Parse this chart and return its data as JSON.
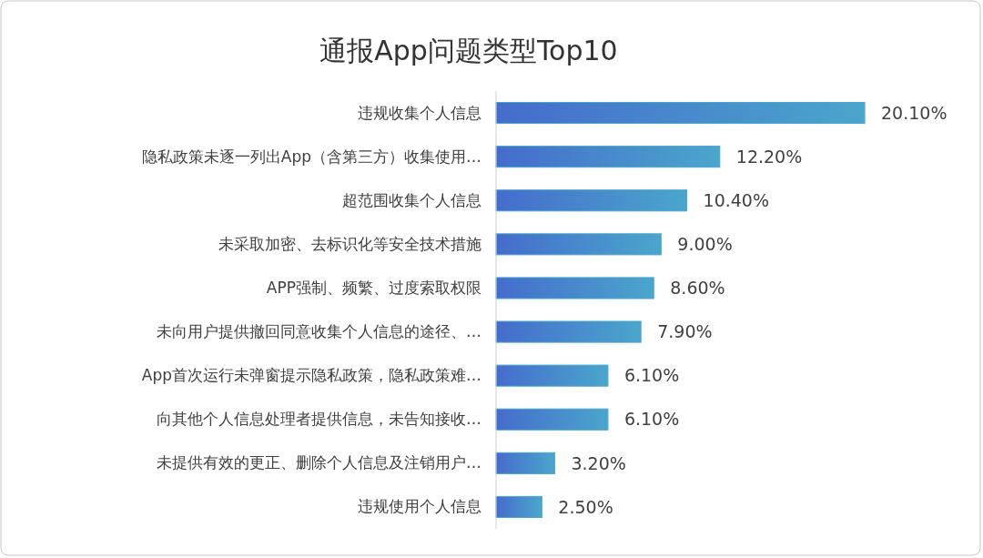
{
  "chart_data": {
    "type": "bar",
    "orientation": "horizontal",
    "title": "通报App问题类型Top10",
    "categories": [
      "违规收集个人信息",
      "隐私政策未逐一列出App（含第三方）收集使用…",
      "超范围收集个人信息",
      "未采取加密、去标识化等安全技术措施",
      "APP强制、频繁、过度索取权限",
      "未向用户提供撤回同意收集个人信息的途径、…",
      "App首次运行未弹窗提示隐私政策，隐私政策难…",
      "向其他个人信息处理者提供信息，未告知接收…",
      "未提供有效的更正、删除个人信息及注销用户…",
      "违规使用个人信息"
    ],
    "values": [
      20.1,
      12.2,
      10.4,
      9.0,
      8.6,
      7.9,
      6.1,
      6.1,
      3.2,
      2.5
    ],
    "value_labels": [
      "20.10%",
      "12.20%",
      "10.40%",
      "9.00%",
      "8.60%",
      "7.90%",
      "6.10%",
      "6.10%",
      "3.20%",
      "2.50%"
    ],
    "color": "#4aa6cc"
  }
}
